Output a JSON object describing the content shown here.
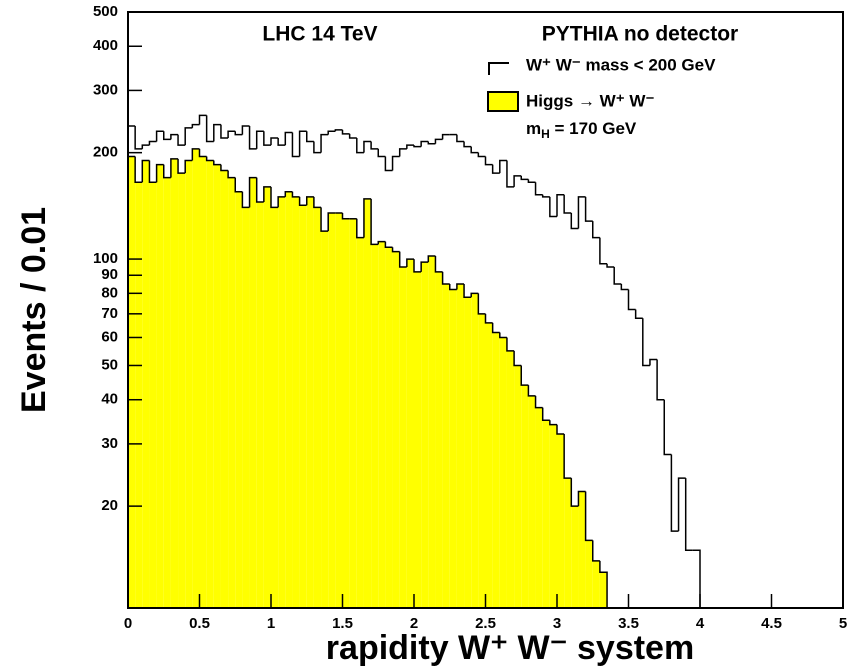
{
  "chart_data": {
    "type": "histogram",
    "xlabel": "rapidity W⁺ W⁻ system",
    "ylabel": "Events / 0.01",
    "texts": [
      "LHC 14 TeV",
      "PYTHIA no detector"
    ],
    "annotation": [
      "m",
      "H",
      " = 170 GeV"
    ],
    "log_y": true,
    "xlim": [
      0,
      5
    ],
    "xticks": [
      0,
      0.5,
      1,
      1.5,
      2,
      2.5,
      3,
      3.5,
      4,
      4.5,
      5
    ],
    "ylim": [
      10.3,
      500
    ],
    "yticks": [
      20,
      30,
      40,
      50,
      60,
      70,
      80,
      90,
      100,
      200,
      300,
      400,
      500
    ],
    "bins": [
      0,
      0.05,
      0.1,
      0.15,
      0.2,
      0.25,
      0.3,
      0.35,
      0.4,
      0.45,
      0.5,
      0.55,
      0.6,
      0.65,
      0.7,
      0.75,
      0.8,
      0.85,
      0.9,
      0.95,
      1,
      1.05,
      1.1,
      1.15,
      1.2,
      1.25,
      1.3,
      1.35,
      1.4,
      1.45,
      1.5,
      1.55,
      1.6,
      1.65,
      1.7,
      1.75,
      1.8,
      1.85,
      1.9,
      1.95,
      2,
      2.05,
      2.1,
      2.15,
      2.2,
      2.25,
      2.3,
      2.35,
      2.4,
      2.45,
      2.5,
      2.55,
      2.6,
      2.65,
      2.7,
      2.75,
      2.8,
      2.85,
      2.9,
      2.95,
      3,
      3.05,
      3.1,
      3.15,
      3.2,
      3.25,
      3.3,
      3.35,
      3.4,
      3.45,
      3.5,
      3.55,
      3.6,
      3.65,
      3.7,
      3.75,
      3.8,
      3.85,
      3.9,
      3.95,
      4
    ],
    "series": [
      {
        "name": "W⁺ W⁻ mass < 200 GeV",
        "color": "none",
        "values": [
          238,
          205,
          210,
          215,
          230,
          218,
          225,
          210,
          235,
          240,
          255,
          215,
          240,
          220,
          230,
          225,
          238,
          205,
          230,
          210,
          220,
          210,
          228,
          195,
          230,
          215,
          200,
          225,
          230,
          232,
          226,
          220,
          200,
          215,
          205,
          195,
          178,
          195,
          205,
          210,
          208,
          215,
          212,
          218,
          225,
          225,
          215,
          208,
          200,
          195,
          185,
          175,
          190,
          160,
          172,
          168,
          165,
          152,
          150,
          132,
          152,
          135,
          122,
          150,
          128,
          115,
          97,
          95,
          85,
          82,
          72,
          68,
          50,
          52,
          40,
          28,
          17,
          24,
          15,
          15
        ]
      },
      {
        "name": "Higgs → W⁺ W⁻",
        "color": "#ffff00",
        "values": [
          195,
          165,
          190,
          165,
          185,
          170,
          192,
          175,
          190,
          205,
          195,
          190,
          185,
          178,
          170,
          155,
          140,
          170,
          145,
          160,
          140,
          150,
          155,
          150,
          142,
          150,
          140,
          120,
          135,
          135,
          130,
          130,
          115,
          148,
          110,
          112,
          108,
          105,
          95,
          100,
          92,
          98,
          102,
          92,
          85,
          82,
          85,
          78,
          80,
          70,
          66,
          62,
          60,
          55,
          50,
          44,
          41,
          38,
          35,
          34,
          32,
          24,
          20,
          22,
          16,
          14,
          13,
          null,
          null,
          null,
          null,
          null,
          null,
          null,
          null,
          null,
          null,
          null,
          null,
          null
        ]
      }
    ]
  }
}
